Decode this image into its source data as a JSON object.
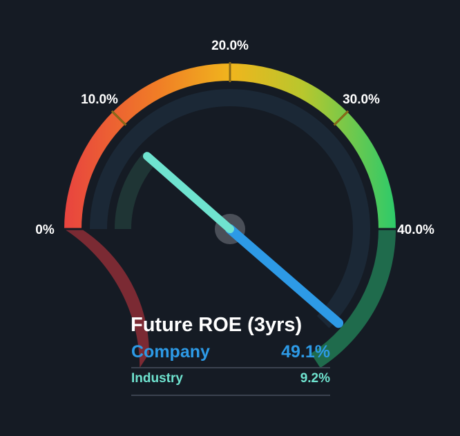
{
  "chart_data": {
    "type": "gauge",
    "title": "Future ROE (3yrs)",
    "scale_ticks": [
      "0%",
      "10.0%",
      "20.0%",
      "30.0%",
      "40.0%"
    ],
    "range": [
      0,
      40
    ],
    "series": [
      {
        "name": "Company",
        "value": 49.1,
        "display": "49.1%",
        "color": "#2d9ae6"
      },
      {
        "name": "Industry",
        "value": 9.2,
        "display": "9.2%",
        "color": "#6fe3cf"
      }
    ],
    "band_colors": {
      "red": "#e8443f",
      "orange": "#f09a1d",
      "yellow": "#d8c622",
      "green": "#3dc46a",
      "over_low": "#7b2a33",
      "over_high": "#1f6b4c"
    }
  }
}
